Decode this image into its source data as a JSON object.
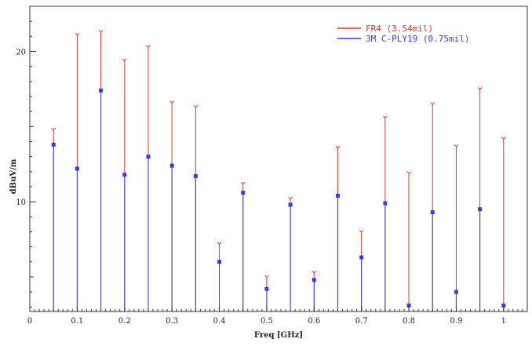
{
  "chart_data": {
    "type": "scatter",
    "title": "",
    "xlabel": "Freq [GHz]",
    "ylabel": "dBuV/m",
    "xlim": [
      0,
      1.05
    ],
    "ylim": [
      2.7,
      23
    ],
    "xticks": [
      "0",
      "0.1",
      "0.2",
      "0.3",
      "0.4",
      "0.5",
      "0.6",
      "0.7",
      "0.8",
      "0.9",
      "1"
    ],
    "yticks": [
      "10",
      "20"
    ],
    "grid": false,
    "legend": "top-right",
    "x": [
      0.05,
      0.1,
      0.15,
      0.2,
      0.25,
      0.3,
      0.35,
      0.4,
      0.45,
      0.5,
      0.55,
      0.6,
      0.65,
      0.7,
      0.75,
      0.8,
      0.85,
      0.9,
      0.95,
      1.0
    ],
    "series": [
      {
        "name": "FR4 (3.54mil)",
        "color": "#e0342c",
        "values": [
          14.8,
          21.1,
          21.3,
          19.4,
          20.3,
          16.6,
          16.3,
          7.2,
          11.2,
          5.0,
          10.2,
          5.3,
          13.6,
          8.0,
          15.6,
          11.9,
          16.5,
          13.7,
          17.5,
          14.2
        ]
      },
      {
        "name": "3M C-PLY19 (0.75mil)",
        "color": "#3a3adf",
        "values": [
          13.8,
          12.2,
          17.4,
          11.8,
          13.0,
          12.4,
          11.7,
          6.0,
          10.6,
          4.2,
          9.8,
          4.8,
          10.4,
          6.3,
          9.9,
          3.1,
          9.3,
          4.0,
          9.5,
          3.1
        ]
      }
    ]
  }
}
